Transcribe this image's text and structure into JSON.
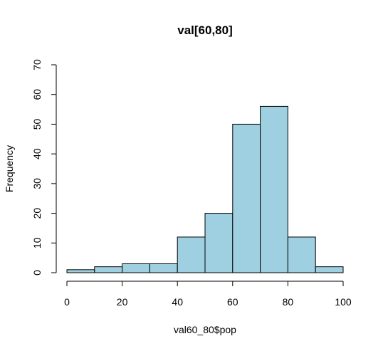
{
  "chart_data": {
    "type": "bar",
    "title": "val[60,80]",
    "xlabel": "val60_80$pop",
    "ylabel": "Frequency",
    "bins": [
      {
        "from": 0,
        "to": 10,
        "count": 1
      },
      {
        "from": 10,
        "to": 20,
        "count": 2
      },
      {
        "from": 20,
        "to": 30,
        "count": 3
      },
      {
        "from": 30,
        "to": 40,
        "count": 3
      },
      {
        "from": 40,
        "to": 50,
        "count": 12
      },
      {
        "from": 50,
        "to": 60,
        "count": 20
      },
      {
        "from": 60,
        "to": 70,
        "count": 50
      },
      {
        "from": 70,
        "to": 80,
        "count": 56
      },
      {
        "from": 80,
        "to": 90,
        "count": 12
      },
      {
        "from": 90,
        "to": 100,
        "count": 2
      }
    ],
    "xlim": [
      0,
      100
    ],
    "ylim": [
      0,
      70
    ],
    "xticks": [
      "0",
      "20",
      "40",
      "60",
      "80",
      "100"
    ],
    "yticks": [
      "0",
      "10",
      "20",
      "30",
      "40",
      "50",
      "60",
      "70"
    ],
    "bar_color": "#9fd0e1",
    "grid": false,
    "legend": "none"
  }
}
